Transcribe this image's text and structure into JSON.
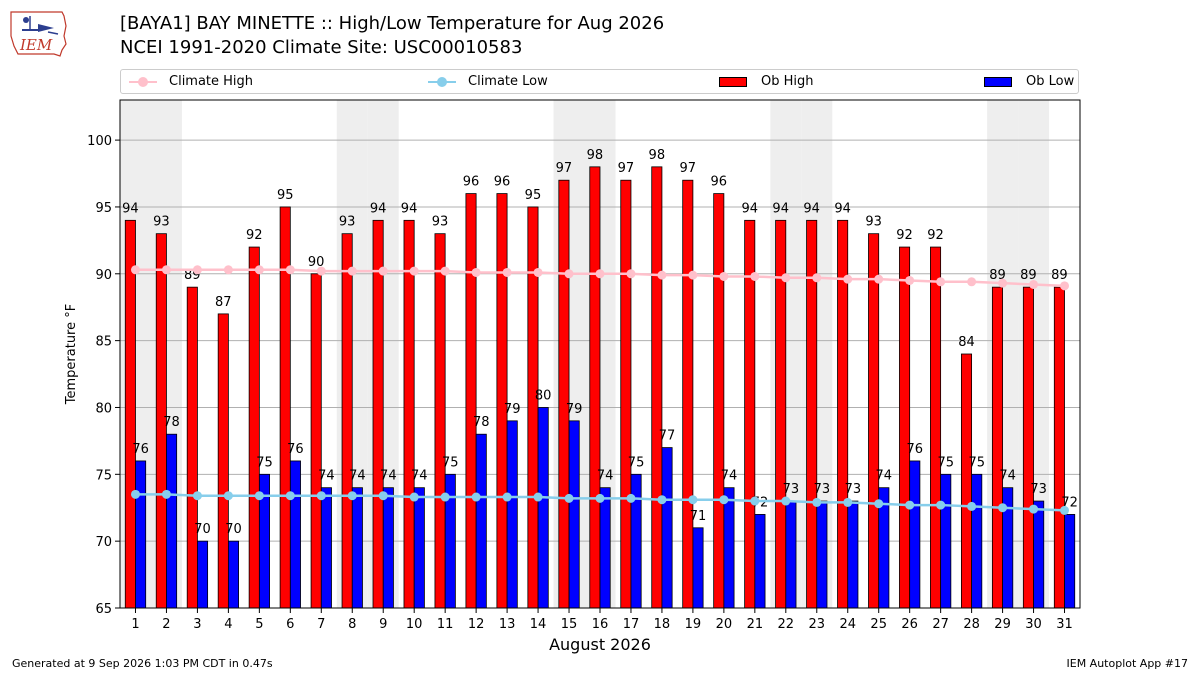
{
  "header": {
    "title_line1": "[BAYA1] BAY MINETTE :: High/Low Temperature for Aug 2026",
    "title_line2": "NCEI 1991-2020 Climate Site: USC00010583"
  },
  "logo": {
    "text": "IEM"
  },
  "legend": [
    {
      "label": "Climate High",
      "color": "#ffc0cb",
      "kind": "line"
    },
    {
      "label": "Climate Low",
      "color": "#87ceeb",
      "kind": "line"
    },
    {
      "label": "Ob High",
      "color": "#ff0000",
      "kind": "bar"
    },
    {
      "label": "Ob Low",
      "color": "#0000ff",
      "kind": "bar"
    }
  ],
  "footer": {
    "left": "Generated at 9 Sep 2026 1:03 PM CDT in 0.47s",
    "right": "IEM Autoplot App #17"
  },
  "chart_data": {
    "type": "bar",
    "xlabel": "August 2026",
    "ylabel": "Temperature °F",
    "ylim": [
      65,
      103
    ],
    "yticks": [
      65,
      70,
      75,
      80,
      85,
      90,
      95,
      100
    ],
    "grid": true,
    "legend_position": "top",
    "weekend_shading_days": [
      1,
      2,
      8,
      9,
      15,
      16,
      22,
      23,
      29,
      30
    ],
    "categories": [
      "1",
      "2",
      "3",
      "4",
      "5",
      "6",
      "7",
      "8",
      "9",
      "10",
      "11",
      "12",
      "13",
      "14",
      "15",
      "16",
      "17",
      "18",
      "19",
      "20",
      "21",
      "22",
      "23",
      "24",
      "25",
      "26",
      "27",
      "28",
      "29",
      "30",
      "31"
    ],
    "series": [
      {
        "name": "Ob High",
        "kind": "bar",
        "color": "#ff0000",
        "values": [
          94,
          93,
          89,
          87,
          92,
          95,
          90,
          93,
          94,
          94,
          93,
          96,
          96,
          95,
          97,
          98,
          97,
          98,
          97,
          96,
          94,
          94,
          94,
          94,
          93,
          92,
          92,
          84,
          89,
          89,
          89
        ]
      },
      {
        "name": "Ob Low",
        "kind": "bar",
        "color": "#0000ff",
        "values": [
          76,
          78,
          70,
          70,
          75,
          76,
          74,
          74,
          74,
          74,
          75,
          78,
          79,
          80,
          79,
          74,
          75,
          77,
          71,
          74,
          72,
          73,
          73,
          73,
          74,
          76,
          75,
          75,
          74,
          73,
          72
        ]
      },
      {
        "name": "Climate High",
        "kind": "line",
        "color": "#ffc0cb",
        "values": [
          90.3,
          90.3,
          90.3,
          90.3,
          90.3,
          90.3,
          90.2,
          90.2,
          90.2,
          90.2,
          90.2,
          90.1,
          90.1,
          90.1,
          90.0,
          90.0,
          90.0,
          89.9,
          89.9,
          89.8,
          89.8,
          89.7,
          89.7,
          89.6,
          89.6,
          89.5,
          89.4,
          89.4,
          89.3,
          89.2,
          89.1
        ]
      },
      {
        "name": "Climate Low",
        "kind": "line",
        "color": "#87ceeb",
        "values": [
          73.5,
          73.5,
          73.4,
          73.4,
          73.4,
          73.4,
          73.4,
          73.4,
          73.4,
          73.3,
          73.3,
          73.3,
          73.3,
          73.3,
          73.2,
          73.2,
          73.2,
          73.1,
          73.1,
          73.1,
          73.0,
          73.0,
          72.9,
          72.9,
          72.8,
          72.7,
          72.7,
          72.6,
          72.5,
          72.4,
          72.3
        ]
      }
    ]
  }
}
